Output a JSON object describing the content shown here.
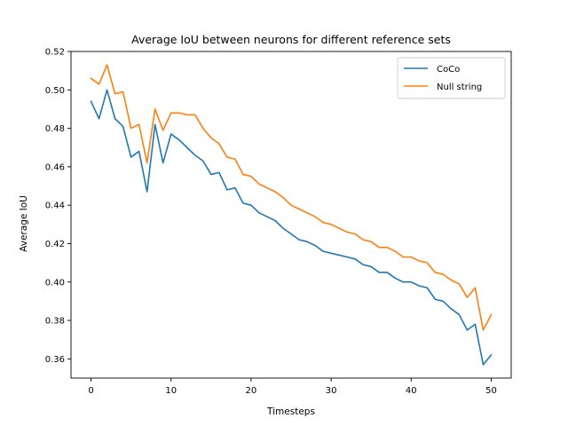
{
  "chart_data": {
    "type": "line",
    "title": "Average IoU between neurons for different reference sets",
    "xlabel": "Timesteps",
    "ylabel": "Average IoU",
    "xlim": [
      -2.5,
      52.5
    ],
    "ylim": [
      0.35,
      0.52
    ],
    "xticks": [
      0,
      10,
      20,
      30,
      40,
      50
    ],
    "yticks": [
      0.36,
      0.38,
      0.4,
      0.42,
      0.44,
      0.46,
      0.48,
      0.5,
      0.52
    ],
    "ytick_labels": [
      "0.36",
      "0.38",
      "0.40",
      "0.42",
      "0.44",
      "0.46",
      "0.48",
      "0.50",
      "0.52"
    ],
    "grid": false,
    "legend_position": "top-right",
    "x": [
      0,
      1,
      2,
      3,
      4,
      5,
      6,
      7,
      8,
      9,
      10,
      11,
      12,
      13,
      14,
      15,
      16,
      17,
      18,
      19,
      20,
      21,
      22,
      23,
      24,
      25,
      26,
      27,
      28,
      29,
      30,
      31,
      32,
      33,
      34,
      35,
      36,
      37,
      38,
      39,
      40,
      41,
      42,
      43,
      44,
      45,
      46,
      47,
      48,
      49,
      50
    ],
    "series": [
      {
        "name": "CoCo",
        "color": "#1f77b4",
        "values": [
          0.494,
          0.485,
          0.5,
          0.485,
          0.481,
          0.465,
          0.468,
          0.447,
          0.482,
          0.462,
          0.477,
          0.474,
          0.47,
          0.466,
          0.463,
          0.456,
          0.457,
          0.448,
          0.449,
          0.441,
          0.44,
          0.436,
          0.434,
          0.432,
          0.428,
          0.425,
          0.422,
          0.421,
          0.419,
          0.416,
          0.415,
          0.414,
          0.413,
          0.412,
          0.409,
          0.408,
          0.405,
          0.405,
          0.402,
          0.4,
          0.4,
          0.398,
          0.397,
          0.391,
          0.39,
          0.386,
          0.383,
          0.375,
          0.378,
          0.357,
          0.362
        ]
      },
      {
        "name": "Null string",
        "color": "#ff7f0e",
        "values": [
          0.506,
          0.503,
          0.513,
          0.498,
          0.499,
          0.48,
          0.482,
          0.462,
          0.49,
          0.479,
          0.488,
          0.488,
          0.487,
          0.487,
          0.48,
          0.475,
          0.472,
          0.465,
          0.464,
          0.456,
          0.455,
          0.451,
          0.449,
          0.447,
          0.444,
          0.44,
          0.438,
          0.436,
          0.434,
          0.431,
          0.43,
          0.428,
          0.426,
          0.425,
          0.422,
          0.421,
          0.418,
          0.418,
          0.416,
          0.413,
          0.413,
          0.411,
          0.41,
          0.405,
          0.404,
          0.401,
          0.399,
          0.392,
          0.397,
          0.375,
          0.383
        ]
      }
    ]
  }
}
